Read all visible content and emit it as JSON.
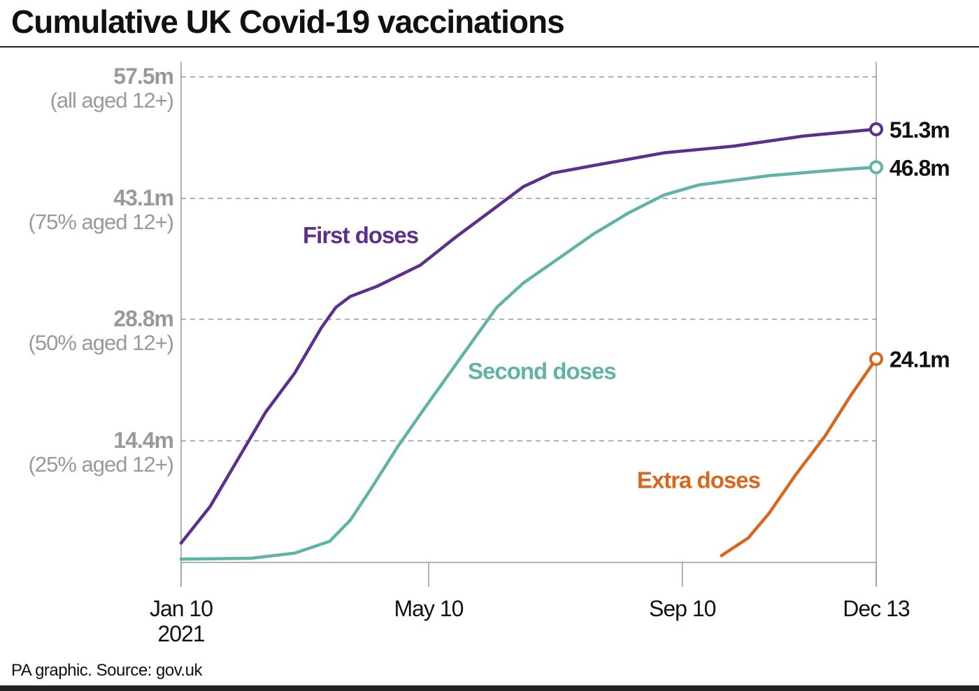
{
  "title": "Cumulative UK Covid-19 vaccinations",
  "footer": "PA graphic. Source: gov.uk",
  "chart_data": {
    "type": "line",
    "title": "Cumulative UK Covid-19 vaccinations",
    "x_unit": "days since 2021-01-10",
    "y_unit": "millions",
    "xlim": [
      0,
      337
    ],
    "ylim": [
      0,
      57.5
    ],
    "grid": true,
    "x_ticks": [
      {
        "value": 0,
        "label": "Jan 10",
        "sublabel": "2021"
      },
      {
        "value": 120,
        "label": "May 10",
        "sublabel": ""
      },
      {
        "value": 243,
        "label": "Sep 10",
        "sublabel": ""
      },
      {
        "value": 337,
        "label": "Dec 13",
        "sublabel": ""
      }
    ],
    "y_ticks": [
      {
        "value": 14.4,
        "label": "14.4m",
        "sublabel": "(25% aged 12+)"
      },
      {
        "value": 28.8,
        "label": "28.8m",
        "sublabel": "(50% aged 12+)"
      },
      {
        "value": 43.1,
        "label": "43.1m",
        "sublabel": "(75% aged 12+)"
      },
      {
        "value": 57.5,
        "label": "57.5m",
        "sublabel": "(all aged 12+)"
      }
    ],
    "series": [
      {
        "name": "First doses",
        "color": "#5c2f8e",
        "end_label": "51.3m",
        "label_at": [
          59,
          37.8
        ],
        "x": [
          0,
          14,
          27,
          41,
          55,
          68,
          75,
          82,
          95,
          116,
          133,
          149,
          166,
          180,
          200,
          234,
          268,
          302,
          337
        ],
        "y": [
          2.3,
          6.6,
          12.0,
          17.8,
          22.4,
          27.8,
          30.2,
          31.5,
          32.7,
          35.2,
          38.5,
          41.4,
          44.5,
          46.1,
          47.0,
          48.5,
          49.3,
          50.5,
          51.3
        ]
      },
      {
        "name": "Second doses",
        "color": "#5fb3a7",
        "end_label": "46.8m",
        "label_at": [
          139,
          21.7
        ],
        "x": [
          0,
          34,
          55,
          72,
          82,
          92,
          105,
          119,
          136,
          153,
          166,
          183,
          200,
          217,
          234,
          251,
          285,
          319,
          337
        ],
        "y": [
          0.4,
          0.5,
          1.1,
          2.5,
          5.0,
          8.7,
          13.7,
          18.6,
          24.4,
          30.2,
          33.1,
          36.0,
          38.9,
          41.4,
          43.5,
          44.7,
          45.8,
          46.5,
          46.8
        ]
      },
      {
        "name": "Extra doses",
        "color": "#d9661f",
        "end_label": "24.1m",
        "label_at": [
          221,
          8.8
        ],
        "x": [
          262,
          275,
          285,
          298,
          312,
          325,
          337
        ],
        "y": [
          0.8,
          2.9,
          5.8,
          10.4,
          14.9,
          19.9,
          24.1
        ]
      }
    ]
  }
}
